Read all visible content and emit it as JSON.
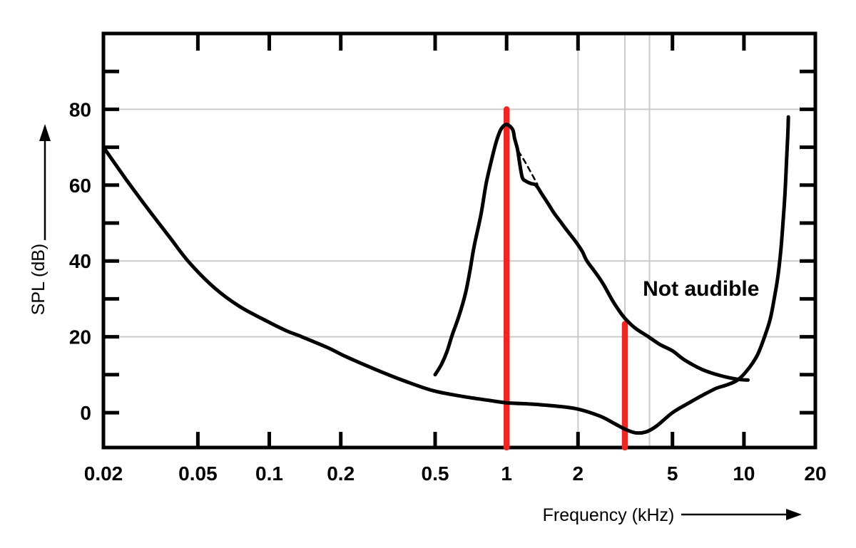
{
  "figure": {
    "not_audible_label": "Not audible",
    "y_axis_title": "SPL (dB)",
    "x_axis_title": "Frequency (kHz)"
  },
  "colors": {
    "background": "#ffffff",
    "curve": "#000000",
    "grid": "#c9c9c9",
    "marker_red": "#ee2722"
  },
  "chart_data": {
    "type": "line",
    "title": "",
    "xlabel": "Frequency (kHz)",
    "ylabel": "SPL (dB)",
    "x_scale": "log",
    "xlim": [
      0.02,
      20
    ],
    "ylim": [
      -9.2,
      100
    ],
    "x_ticks": [
      0.05,
      0.1,
      0.2,
      0.5,
      1,
      2,
      5,
      10
    ],
    "x_tick_labels_all": [
      {
        "f": 0.02,
        "label": "0.02"
      },
      {
        "f": 0.05,
        "label": "0.05"
      },
      {
        "f": 0.1,
        "label": "0.1"
      },
      {
        "f": 0.2,
        "label": "0.2"
      },
      {
        "f": 0.5,
        "label": "0.5"
      },
      {
        "f": 1,
        "label": "1"
      },
      {
        "f": 2,
        "label": "2"
      },
      {
        "f": 5,
        "label": "5"
      },
      {
        "f": 10,
        "label": "10"
      },
      {
        "f": 20,
        "label": "20"
      }
    ],
    "y_ticks_minor": [
      0,
      10,
      20,
      30,
      40,
      50,
      60,
      70,
      80,
      90
    ],
    "y_tick_labels": [
      {
        "db": 0,
        "label": "0"
      },
      {
        "db": 20,
        "label": "20"
      },
      {
        "db": 40,
        "label": "40"
      },
      {
        "db": 60,
        "label": "60"
      },
      {
        "db": 80,
        "label": "80"
      }
    ],
    "h_gridlines_db": [
      20,
      40,
      80
    ],
    "v_gridlines_khz": [
      2,
      3.15,
      4
    ],
    "grid": "partial",
    "legend": "none",
    "series": [
      {
        "name": "hearing-threshold",
        "style": "solid",
        "points": [
          [
            0.02,
            70
          ],
          [
            0.025,
            61.4
          ],
          [
            0.031,
            53.5
          ],
          [
            0.038,
            46.3
          ],
          [
            0.046,
            39.6
          ],
          [
            0.059,
            32.8
          ],
          [
            0.075,
            28
          ],
          [
            0.1,
            23.8
          ],
          [
            0.118,
            21.6
          ],
          [
            0.136,
            20.1
          ],
          [
            0.177,
            17.1
          ],
          [
            0.21,
            14.8
          ],
          [
            0.28,
            11.4
          ],
          [
            0.37,
            8.4
          ],
          [
            0.49,
            5.8
          ],
          [
            0.65,
            4.3
          ],
          [
            0.85,
            3.2
          ],
          [
            1.0,
            2.6
          ],
          [
            1.38,
            2.1
          ],
          [
            1.94,
            1.1
          ],
          [
            2.47,
            -0.9
          ],
          [
            2.83,
            -2.8
          ],
          [
            3.14,
            -4.3
          ],
          [
            3.48,
            -5.3
          ],
          [
            3.86,
            -5.1
          ],
          [
            4.27,
            -3.6
          ],
          [
            5.0,
            0
          ],
          [
            5.8,
            2.4
          ],
          [
            6.66,
            4.5
          ],
          [
            7.63,
            6.4
          ],
          [
            8.46,
            7.3
          ],
          [
            9.4,
            8.6
          ],
          [
            10.4,
            11.4
          ],
          [
            11.4,
            15.2
          ],
          [
            12.2,
            19.9
          ],
          [
            12.9,
            24.6
          ],
          [
            13.4,
            29.8
          ],
          [
            13.9,
            35.8
          ],
          [
            14.3,
            42.6
          ],
          [
            14.6,
            49.7
          ],
          [
            14.9,
            58
          ],
          [
            15.1,
            65.5
          ],
          [
            15.3,
            73
          ],
          [
            15.4,
            78
          ]
        ]
      },
      {
        "name": "masking-curve",
        "style": "solid",
        "points": [
          [
            0.5,
            10
          ],
          [
            0.53,
            12.6
          ],
          [
            0.56,
            16
          ],
          [
            0.59,
            20.5
          ],
          [
            0.63,
            25.5
          ],
          [
            0.67,
            31.3
          ],
          [
            0.7,
            37.3
          ],
          [
            0.73,
            43.9
          ],
          [
            0.78,
            52.3
          ],
          [
            0.82,
            60.4
          ],
          [
            0.87,
            67.4
          ],
          [
            0.91,
            72
          ],
          [
            0.95,
            74.9
          ],
          [
            1.0,
            76
          ],
          [
            1.06,
            74.7
          ],
          [
            1.08,
            72.4
          ],
          [
            1.11,
            69.6
          ],
          [
            1.13,
            66.6
          ],
          [
            1.15,
            63.6
          ],
          [
            1.17,
            61.7
          ],
          [
            1.21,
            61
          ],
          [
            1.27,
            60.4
          ],
          [
            1.33,
            60
          ],
          [
            1.41,
            57.6
          ],
          [
            1.5,
            55
          ],
          [
            1.59,
            52.5
          ],
          [
            1.69,
            50.3
          ],
          [
            1.81,
            47.8
          ],
          [
            1.94,
            45.4
          ],
          [
            2.08,
            42.6
          ],
          [
            2.18,
            40
          ],
          [
            2.36,
            37.1
          ],
          [
            2.55,
            34
          ],
          [
            2.78,
            29.8
          ],
          [
            2.97,
            27
          ],
          [
            3.16,
            24.8
          ],
          [
            3.48,
            22.3
          ],
          [
            3.94,
            20.1
          ],
          [
            4.42,
            18
          ],
          [
            5.0,
            16.3
          ],
          [
            5.62,
            13.9
          ],
          [
            6.66,
            11.4
          ],
          [
            7.92,
            9.8
          ],
          [
            9.4,
            8.8
          ],
          [
            10.4,
            8.6
          ]
        ]
      },
      {
        "name": "masking-smooth-segment",
        "style": "dashed",
        "points": [
          [
            1.12,
            69
          ],
          [
            1.2,
            66
          ],
          [
            1.28,
            62.8
          ],
          [
            1.35,
            60.2
          ]
        ]
      }
    ],
    "markers": [
      {
        "name": "masker-tone",
        "f_khz": 1.0,
        "db_top": 80,
        "db_bottom": -9.2
      },
      {
        "name": "masked-tone",
        "f_khz": 3.15,
        "db_top": 23.4,
        "db_bottom": -9.2
      }
    ],
    "annotations": [
      {
        "text": "Not audible",
        "f_khz": 6.6,
        "db": 30.8
      }
    ]
  }
}
